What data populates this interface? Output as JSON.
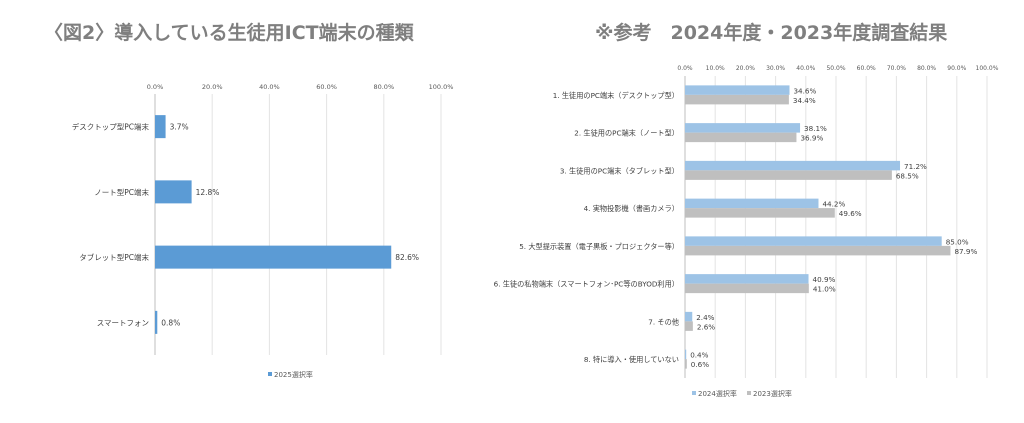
{
  "left_title": "〈図2〉導入している生徒用ICT端末の種類",
  "right_title": "※参考　2024年度・2023年度調査結果",
  "chart_data": [
    {
      "type": "bar",
      "orientation": "horizontal",
      "categories": [
        "デスクトップ型PC端末",
        "ノート型PC端末",
        "タブレット型PC端末",
        "スマートフォン"
      ],
      "series": [
        {
          "name": "2025選択率",
          "values": [
            3.7,
            12.8,
            82.6,
            0.8
          ],
          "color": "#5b9bd5"
        }
      ],
      "value_labels": [
        "3.7%",
        "12.8%",
        "82.6%",
        "0.8%"
      ],
      "xlim": [
        0,
        100
      ],
      "ticks": [
        "0.0%",
        "20.0%",
        "40.0%",
        "60.0%",
        "80.0%",
        "100.0%"
      ],
      "legend_position": "bottom",
      "grid": true
    },
    {
      "type": "bar",
      "orientation": "horizontal",
      "categories": [
        "1. 生徒用のPC端末（デスクトップ型）",
        "2. 生徒用のPC端末（ノート型）",
        "3. 生徒用のPC端末（タブレット型）",
        "4. 実物投影機（書画カメラ）",
        "5. 大型提示装置（電子黒板・プロジェクター等）",
        "6. 生徒の私物端末（スマートフォン･PC等のBYOD利用）",
        "7. その他",
        "8. 特に導入・使用していない"
      ],
      "series": [
        {
          "name": "2024選択率",
          "values": [
            34.6,
            38.1,
            71.2,
            44.2,
            85.0,
            40.9,
            2.4,
            0.4
          ],
          "color": "#9dc3e6"
        },
        {
          "name": "2023選択率",
          "values": [
            34.4,
            36.9,
            68.5,
            49.6,
            87.9,
            41.0,
            2.6,
            0.6
          ],
          "color": "#bfbfbf"
        }
      ],
      "value_labels": [
        [
          "34.6%",
          "38.1%",
          "71.2%",
          "44.2%",
          "85.0%",
          "40.9%",
          "2.4%",
          "0.4%"
        ],
        [
          "34.4%",
          "36.9%",
          "68.5%",
          "49.6%",
          "87.9%",
          "41.0%",
          "2.6%",
          "0.6%"
        ]
      ],
      "xlim": [
        0,
        100
      ],
      "ticks": [
        "0.0%",
        "10.0%",
        "20.0%",
        "30.0%",
        "40.0%",
        "50.0%",
        "60.0%",
        "70.0%",
        "80.0%",
        "90.0%",
        "100.0%"
      ],
      "legend_position": "bottom",
      "grid": true
    }
  ]
}
